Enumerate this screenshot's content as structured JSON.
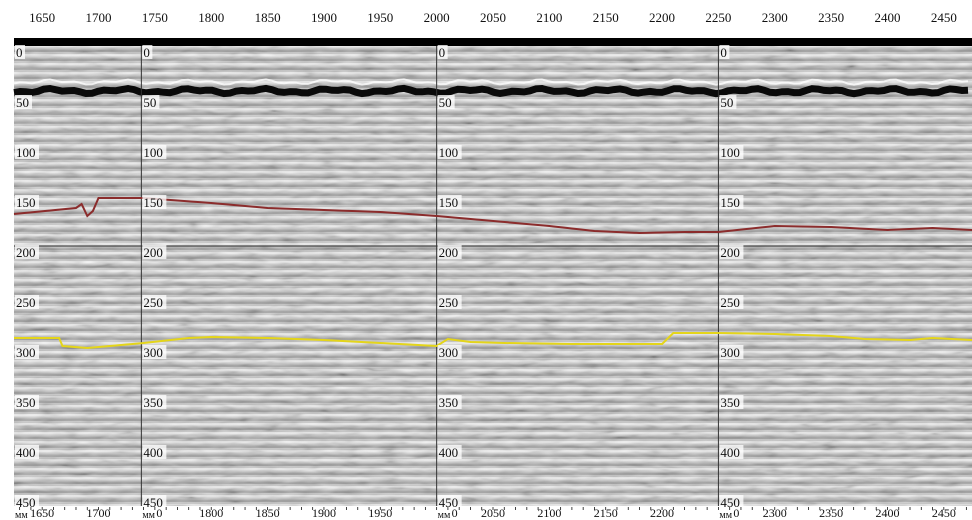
{
  "window": {
    "width": 972,
    "height": 520
  },
  "top_axis": {
    "ticks": [
      "1650",
      "1700",
      "1750",
      "1800",
      "1850",
      "1900",
      "1950",
      "2000",
      "2050",
      "2100",
      "2150",
      "2200",
      "2250",
      "2300",
      "2350",
      "2400",
      "2450"
    ],
    "start_value": 1650,
    "step": 50
  },
  "panels": [
    {
      "name": "panel-1",
      "x_start": 1625,
      "x_end": 1738,
      "unit_label": "мм",
      "bottom_ticks": [
        "1650",
        "1700"
      ],
      "depth_labels": [
        "0",
        "50",
        "100",
        "150",
        "200",
        "250",
        "300",
        "350",
        "400",
        "450"
      ]
    },
    {
      "name": "panel-2",
      "x_start": 1738,
      "x_end": 2000,
      "unit_label": "мм",
      "bottom_ticks": [
        "0",
        "1800",
        "1850",
        "1900",
        "1950"
      ],
      "depth_labels": [
        "0",
        "50",
        "100",
        "150",
        "200",
        "250",
        "300",
        "350",
        "400",
        "450"
      ]
    },
    {
      "name": "panel-3",
      "x_start": 2000,
      "x_end": 2250,
      "unit_label": "мм",
      "bottom_ticks": [
        "0",
        "2050",
        "2100",
        "2150",
        "2200"
      ],
      "depth_labels": [
        "0",
        "50",
        "100",
        "150",
        "200",
        "250",
        "300",
        "350",
        "400",
        "450"
      ]
    },
    {
      "name": "panel-4",
      "x_start": 2250,
      "x_end": 2475,
      "unit_label": "мм",
      "bottom_ticks": [
        "0",
        "2300",
        "2350",
        "2400",
        "2450"
      ],
      "depth_labels": [
        "0",
        "50",
        "100",
        "150",
        "200",
        "250",
        "300",
        "350",
        "400",
        "450"
      ]
    }
  ],
  "depth_range": [
    0,
    460
  ],
  "reference_depth": 200,
  "surface_depth": 45,
  "layers": [
    {
      "name": "brown-interface",
      "color": "#8b2c2c",
      "points": [
        [
          1625,
          168
        ],
        [
          1680,
          162
        ],
        [
          1685,
          158
        ],
        [
          1690,
          170
        ],
        [
          1695,
          165
        ],
        [
          1700,
          152
        ],
        [
          1740,
          152
        ],
        [
          1800,
          157
        ],
        [
          1850,
          162
        ],
        [
          1950,
          166
        ],
        [
          2000,
          170
        ],
        [
          2100,
          180
        ],
        [
          2140,
          185
        ],
        [
          2180,
          187
        ],
        [
          2220,
          186
        ],
        [
          2250,
          186
        ],
        [
          2300,
          180
        ],
        [
          2350,
          181
        ],
        [
          2400,
          184
        ],
        [
          2440,
          182
        ],
        [
          2475,
          184
        ]
      ]
    },
    {
      "name": "yellow-interface",
      "color": "#e4d51a",
      "points": [
        [
          1625,
          292
        ],
        [
          1665,
          292
        ],
        [
          1668,
          300
        ],
        [
          1690,
          302
        ],
        [
          1720,
          299
        ],
        [
          1740,
          297
        ],
        [
          1780,
          292
        ],
        [
          1800,
          291
        ],
        [
          1850,
          292
        ],
        [
          1900,
          294
        ],
        [
          1950,
          297
        ],
        [
          2000,
          300
        ],
        [
          2010,
          293
        ],
        [
          2030,
          296
        ],
        [
          2060,
          297
        ],
        [
          2120,
          298
        ],
        [
          2200,
          298
        ],
        [
          2210,
          287
        ],
        [
          2250,
          287
        ],
        [
          2300,
          288
        ],
        [
          2350,
          290
        ],
        [
          2380,
          293
        ],
        [
          2420,
          294
        ],
        [
          2440,
          292
        ],
        [
          2475,
          294
        ]
      ]
    }
  ],
  "colors": {
    "surface_band": "#0a0a0a",
    "background_gray": "#c8c8c8",
    "reference_line": "#222222",
    "panel_divider": "#333333"
  }
}
